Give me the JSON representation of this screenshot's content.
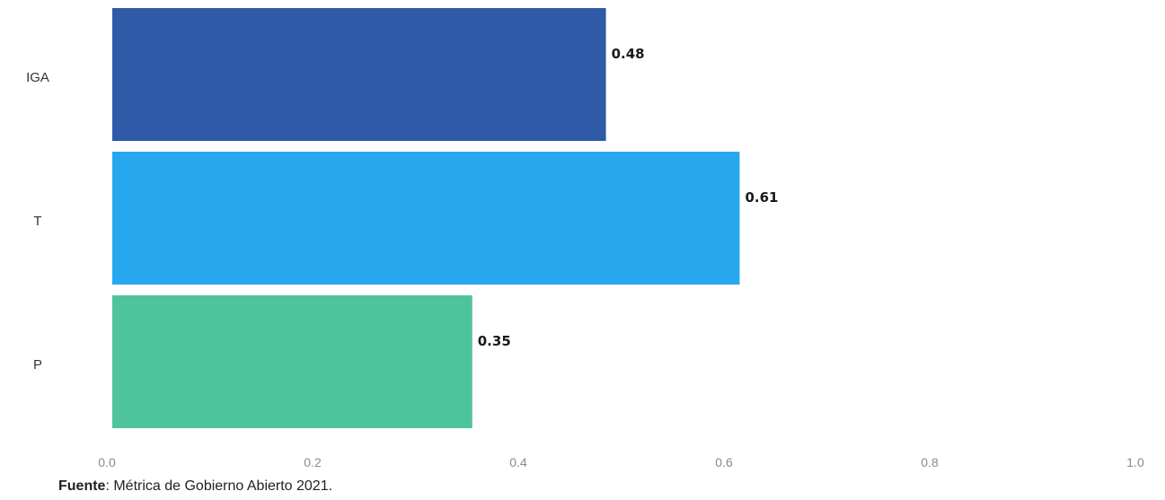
{
  "chart_data": {
    "type": "bar",
    "orientation": "horizontal",
    "categories": [
      "IGA",
      "T",
      "P"
    ],
    "values": [
      0.48,
      0.61,
      0.35
    ],
    "value_labels": [
      "0.48",
      "0.61",
      "0.35"
    ],
    "colors": [
      "#2e5aa8",
      "#27a8ee",
      "#4ec49c"
    ],
    "xlim": [
      0,
      1.0
    ],
    "x_ticks": [
      0.0,
      0.2,
      0.4,
      0.6,
      0.8,
      1.0
    ],
    "x_tick_labels": [
      "0.0",
      "0.2",
      "0.4",
      "0.6",
      "0.8",
      "1.0"
    ],
    "grid": false,
    "legend": "none"
  },
  "source": {
    "label": "Fuente",
    "text": ": Métrica de Gobierno Abierto 2021."
  }
}
